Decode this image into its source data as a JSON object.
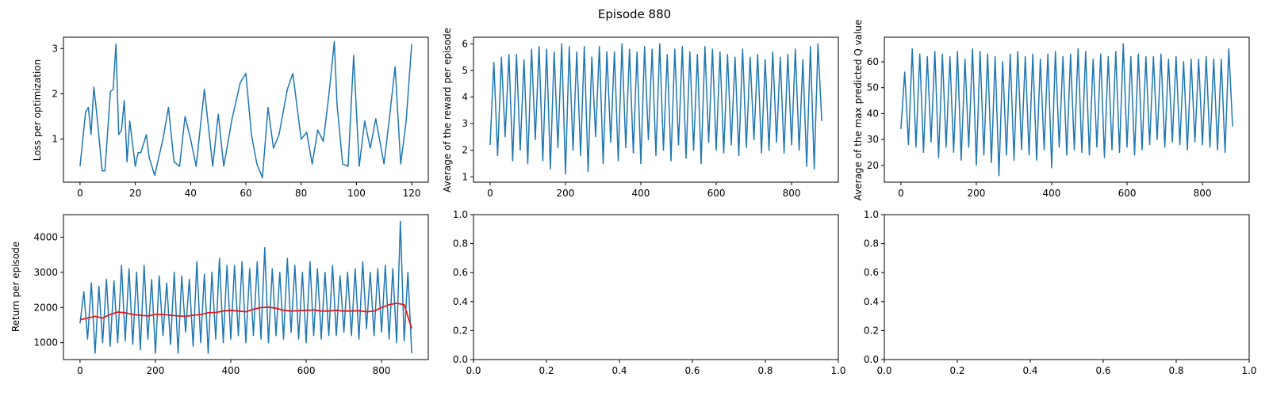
{
  "figure": {
    "title": "Episode 880"
  },
  "colors": {
    "series_blue": "#1f77b4",
    "moving_avg_red": "#e31a1c"
  },
  "chart_data": [
    {
      "id": "loss",
      "type": "line",
      "title": "",
      "xlabel": "",
      "ylabel": "Loss per optimization",
      "xlim": [
        -6,
        126
      ],
      "ylim": [
        0.05,
        3.25
      ],
      "xticks": [
        0,
        20,
        40,
        60,
        80,
        100,
        120
      ],
      "yticks": [
        1,
        2,
        3
      ],
      "grid": false,
      "series": [
        {
          "color": "#1f77b4",
          "x": [
            0,
            2,
            3,
            4,
            5,
            6,
            8,
            9,
            11,
            12,
            13,
            14,
            15,
            16,
            17,
            18,
            20,
            21,
            22,
            24,
            25,
            27,
            30,
            32,
            34,
            36,
            38,
            40,
            42,
            45,
            48,
            50,
            52,
            55,
            58,
            60,
            62,
            64,
            66,
            68,
            70,
            72,
            75,
            77,
            80,
            82,
            84,
            86,
            88,
            90,
            92,
            93,
            95,
            97,
            99,
            101,
            103,
            105,
            107,
            110,
            112,
            114,
            116,
            118,
            120
          ],
          "values": [
            0.4,
            1.6,
            1.7,
            1.1,
            2.15,
            1.6,
            0.3,
            0.3,
            2.05,
            2.1,
            3.1,
            1.1,
            1.2,
            1.85,
            0.5,
            1.4,
            0.4,
            0.7,
            0.7,
            1.1,
            0.6,
            0.2,
            1.0,
            1.7,
            0.5,
            0.4,
            1.5,
            1.0,
            0.4,
            2.1,
            0.4,
            1.55,
            0.4,
            1.45,
            2.25,
            2.45,
            1.1,
            0.45,
            0.15,
            1.7,
            0.8,
            1.1,
            2.1,
            2.45,
            1.0,
            1.15,
            0.45,
            1.2,
            0.95,
            1.95,
            3.15,
            1.75,
            0.45,
            0.4,
            2.85,
            0.4,
            1.4,
            0.8,
            1.45,
            0.45,
            1.5,
            2.6,
            0.45,
            1.4,
            3.1
          ]
        }
      ]
    },
    {
      "id": "reward",
      "type": "line",
      "title": "",
      "xlabel": "",
      "ylabel": "Average of the reward per episode",
      "xlim": [
        -44,
        924
      ],
      "ylim": [
        0.8,
        6.25
      ],
      "xticks": [
        0,
        200,
        400,
        600,
        800
      ],
      "yticks": [
        1,
        2,
        3,
        4,
        5,
        6
      ],
      "grid": false,
      "series": [
        {
          "color": "#1f77b4",
          "x": [
            0,
            10,
            20,
            30,
            40,
            50,
            60,
            70,
            80,
            90,
            100,
            110,
            120,
            130,
            140,
            150,
            160,
            170,
            180,
            190,
            200,
            210,
            220,
            230,
            240,
            250,
            260,
            270,
            280,
            290,
            300,
            310,
            320,
            330,
            340,
            350,
            360,
            370,
            380,
            390,
            400,
            410,
            420,
            430,
            440,
            450,
            460,
            470,
            480,
            490,
            500,
            510,
            520,
            530,
            540,
            550,
            560,
            570,
            580,
            590,
            600,
            610,
            620,
            630,
            640,
            650,
            660,
            670,
            680,
            690,
            700,
            710,
            720,
            730,
            740,
            750,
            760,
            770,
            780,
            790,
            800,
            810,
            820,
            830,
            840,
            850,
            860,
            870,
            880
          ],
          "values": [
            2.2,
            5.3,
            1.8,
            5.5,
            2.5,
            5.6,
            1.6,
            5.6,
            2.0,
            5.4,
            1.5,
            5.8,
            2.4,
            5.9,
            1.6,
            5.8,
            1.3,
            5.7,
            2.1,
            6.0,
            1.1,
            5.9,
            2.0,
            5.7,
            1.8,
            5.9,
            1.2,
            5.5,
            2.5,
            5.9,
            1.5,
            5.7,
            2.3,
            5.7,
            1.6,
            6.0,
            2.1,
            5.8,
            1.9,
            5.7,
            1.5,
            5.9,
            2.4,
            5.8,
            1.8,
            6.0,
            2.0,
            5.6,
            1.6,
            5.8,
            2.2,
            5.9,
            1.7,
            5.7,
            2.0,
            5.6,
            1.5,
            5.9,
            2.3,
            5.8,
            2.0,
            5.7,
            1.9,
            5.6,
            2.2,
            5.5,
            1.8,
            5.8,
            2.1,
            5.5,
            2.4,
            5.6,
            1.9,
            5.4,
            2.0,
            5.7,
            2.3,
            5.5,
            1.9,
            5.6,
            2.2,
            5.8,
            2.0,
            5.4,
            1.4,
            5.9,
            1.3,
            6.0,
            3.1
          ]
        }
      ]
    },
    {
      "id": "qvalue",
      "type": "line",
      "title": "",
      "xlabel": "",
      "ylabel": "Average of the max predicted Q value",
      "xlim": [
        -44,
        924
      ],
      "ylim": [
        13.5,
        69.5
      ],
      "xticks": [
        0,
        200,
        400,
        600,
        800
      ],
      "yticks": [
        20,
        30,
        40,
        50,
        60
      ],
      "grid": false,
      "series": [
        {
          "color": "#1f77b4",
          "x": [
            0,
            10,
            20,
            30,
            40,
            50,
            60,
            70,
            80,
            90,
            100,
            110,
            120,
            130,
            140,
            150,
            160,
            170,
            180,
            190,
            200,
            210,
            220,
            230,
            240,
            250,
            260,
            270,
            280,
            290,
            300,
            310,
            320,
            330,
            340,
            350,
            360,
            370,
            380,
            390,
            400,
            410,
            420,
            430,
            440,
            450,
            460,
            470,
            480,
            490,
            500,
            510,
            520,
            530,
            540,
            550,
            560,
            570,
            580,
            590,
            600,
            610,
            620,
            630,
            640,
            650,
            660,
            670,
            680,
            690,
            700,
            710,
            720,
            730,
            740,
            750,
            760,
            770,
            780,
            790,
            800,
            810,
            820,
            830,
            840,
            850,
            860,
            870,
            880
          ],
          "values": [
            34,
            56,
            28,
            65,
            27,
            63,
            25,
            62,
            29,
            64,
            23,
            63,
            27,
            62,
            25,
            64,
            22,
            61,
            27,
            65,
            20,
            64,
            24,
            63,
            21,
            62,
            16,
            60,
            24,
            63,
            22,
            64,
            26,
            62,
            24,
            63,
            22,
            61,
            26,
            63,
            19,
            64,
            27,
            62,
            24,
            63,
            26,
            65,
            25,
            64,
            24,
            61,
            27,
            63,
            23,
            62,
            26,
            64,
            25,
            67,
            27,
            62,
            24,
            63,
            26,
            62,
            28,
            62,
            30,
            63,
            27,
            61,
            29,
            62,
            28,
            60,
            26,
            61,
            29,
            61,
            28,
            62,
            27,
            61,
            26,
            61,
            25,
            65,
            35
          ]
        }
      ]
    },
    {
      "id": "return",
      "type": "line",
      "title": "",
      "xlabel": "",
      "ylabel": "Return per episode",
      "xlim": [
        -44,
        924
      ],
      "ylim": [
        520,
        4640
      ],
      "xticks": [
        0,
        200,
        400,
        600,
        800
      ],
      "yticks": [
        1000,
        2000,
        3000,
        4000
      ],
      "grid": false,
      "series": [
        {
          "color": "#1f77b4",
          "x": [
            0,
            10,
            20,
            30,
            40,
            50,
            60,
            70,
            80,
            90,
            100,
            110,
            120,
            130,
            140,
            150,
            160,
            170,
            180,
            190,
            200,
            210,
            220,
            230,
            240,
            250,
            260,
            270,
            280,
            290,
            300,
            310,
            320,
            330,
            340,
            350,
            360,
            370,
            380,
            390,
            400,
            410,
            420,
            430,
            440,
            450,
            460,
            470,
            480,
            490,
            500,
            510,
            520,
            530,
            540,
            550,
            560,
            570,
            580,
            590,
            600,
            610,
            620,
            630,
            640,
            650,
            660,
            670,
            680,
            690,
            700,
            710,
            720,
            730,
            740,
            750,
            760,
            770,
            780,
            790,
            800,
            810,
            820,
            830,
            840,
            850,
            860,
            870,
            880
          ],
          "values": [
            1550,
            2450,
            1100,
            2700,
            700,
            2600,
            1000,
            2800,
            900,
            2750,
            1000,
            3200,
            1050,
            3100,
            950,
            3000,
            800,
            3200,
            1100,
            2800,
            700,
            2900,
            1200,
            2700,
            950,
            3000,
            700,
            2900,
            1300,
            2800,
            900,
            3300,
            1000,
            2950,
            700,
            3000,
            1100,
            3400,
            1000,
            3200,
            1100,
            3200,
            1200,
            3300,
            1000,
            3100,
            1200,
            3300,
            1100,
            3700,
            1000,
            3100,
            1200,
            3000,
            1100,
            3400,
            1300,
            3200,
            1100,
            3000,
            1000,
            3300,
            1200,
            3100,
            1100,
            3000,
            1200,
            3200,
            1200,
            2900,
            1300,
            3000,
            1200,
            3100,
            1100,
            3300,
            1400,
            3000,
            1200,
            3100,
            1300,
            3200,
            1100,
            3100,
            1000,
            4450,
            1050,
            3000,
            700
          ]
        },
        {
          "color": "#e31a1c",
          "x": [
            0,
            20,
            40,
            60,
            80,
            100,
            120,
            140,
            160,
            180,
            200,
            220,
            240,
            260,
            280,
            300,
            320,
            340,
            360,
            380,
            400,
            420,
            440,
            460,
            480,
            500,
            520,
            540,
            560,
            580,
            600,
            620,
            640,
            660,
            680,
            700,
            720,
            740,
            760,
            780,
            800,
            820,
            840,
            860,
            880
          ],
          "values": [
            1650,
            1700,
            1750,
            1700,
            1800,
            1870,
            1850,
            1800,
            1780,
            1760,
            1800,
            1800,
            1780,
            1760,
            1750,
            1780,
            1800,
            1850,
            1860,
            1900,
            1920,
            1900,
            1880,
            1950,
            2000,
            2010,
            1980,
            1920,
            1900,
            1910,
            1920,
            1930,
            1900,
            1900,
            1920,
            1900,
            1900,
            1910,
            1880,
            1900,
            2000,
            2080,
            2120,
            2080,
            1400
          ]
        }
      ]
    },
    {
      "id": "empty1",
      "type": "line",
      "title": "",
      "xlabel": "",
      "ylabel": "",
      "xlim": [
        0,
        1
      ],
      "ylim": [
        0,
        1
      ],
      "xticks": [
        0,
        0.2,
        0.4,
        0.6,
        0.8,
        1
      ],
      "xtick_labels": [
        "0.0",
        "0.2",
        "0.4",
        "0.6",
        "0.8",
        "1.0"
      ],
      "yticks": [
        0,
        0.2,
        0.4,
        0.6,
        0.8,
        1
      ],
      "ytick_labels": [
        "0.0",
        "0.2",
        "0.4",
        "0.6",
        "0.8",
        "1.0"
      ],
      "grid": false,
      "series": []
    },
    {
      "id": "empty2",
      "type": "line",
      "title": "",
      "xlabel": "",
      "ylabel": "",
      "xlim": [
        0,
        1
      ],
      "ylim": [
        0,
        1
      ],
      "xticks": [
        0,
        0.2,
        0.4,
        0.6,
        0.8,
        1
      ],
      "xtick_labels": [
        "0.0",
        "0.2",
        "0.4",
        "0.6",
        "0.8",
        "1.0"
      ],
      "yticks": [
        0,
        0.2,
        0.4,
        0.6,
        0.8,
        1
      ],
      "ytick_labels": [
        "0.0",
        "0.2",
        "0.4",
        "0.6",
        "0.8",
        "1.0"
      ],
      "grid": false,
      "series": []
    }
  ]
}
